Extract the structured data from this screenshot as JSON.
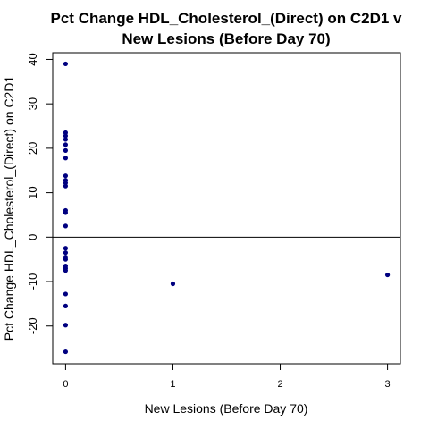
{
  "chart_data": {
    "type": "scatter",
    "title_line1": "Pct Change HDL_Cholesterol_(Direct) on C2D1 v",
    "title_line2": "New Lesions (Before Day 70)",
    "xlabel": "New Lesions (Before Day 70)",
    "ylabel": "Pct Change HDL_Cholesterol_(Direct) on C2D1",
    "xlim": [
      -0.12,
      3.12
    ],
    "ylim": [
      -28.5,
      41.5
    ],
    "xticks": [
      0,
      1,
      2,
      3
    ],
    "xtick_labels": [
      "0",
      "1",
      "2",
      "3"
    ],
    "yticks": [
      -20,
      -10,
      0,
      10,
      20,
      30,
      40
    ],
    "ytick_labels": [
      "-20",
      "-10",
      "0",
      "10",
      "20",
      "30",
      "40"
    ],
    "reference_line_y": 0,
    "point_color": "#000080",
    "points": [
      {
        "x": 0,
        "y": 39.0
      },
      {
        "x": 0,
        "y": 23.5
      },
      {
        "x": 0,
        "y": 22.8
      },
      {
        "x": 0,
        "y": 22.0
      },
      {
        "x": 0,
        "y": 20.8
      },
      {
        "x": 0,
        "y": 19.5
      },
      {
        "x": 0,
        "y": 17.8
      },
      {
        "x": 0,
        "y": 13.8
      },
      {
        "x": 0,
        "y": 12.8
      },
      {
        "x": 0,
        "y": 12.2
      },
      {
        "x": 0,
        "y": 11.5
      },
      {
        "x": 0,
        "y": 6.0
      },
      {
        "x": 0,
        "y": 5.5
      },
      {
        "x": 0,
        "y": 2.5
      },
      {
        "x": 0,
        "y": -2.5
      },
      {
        "x": 0,
        "y": -3.5
      },
      {
        "x": 0,
        "y": -4.5
      },
      {
        "x": 0,
        "y": -5.0
      },
      {
        "x": 0,
        "y": -6.5
      },
      {
        "x": 0,
        "y": -7.0
      },
      {
        "x": 0,
        "y": -7.5
      },
      {
        "x": 0,
        "y": -12.8
      },
      {
        "x": 0,
        "y": -15.5
      },
      {
        "x": 0,
        "y": -19.8
      },
      {
        "x": 0,
        "y": -25.8
      },
      {
        "x": 1,
        "y": -10.5
      },
      {
        "x": 3,
        "y": -8.5
      }
    ]
  }
}
